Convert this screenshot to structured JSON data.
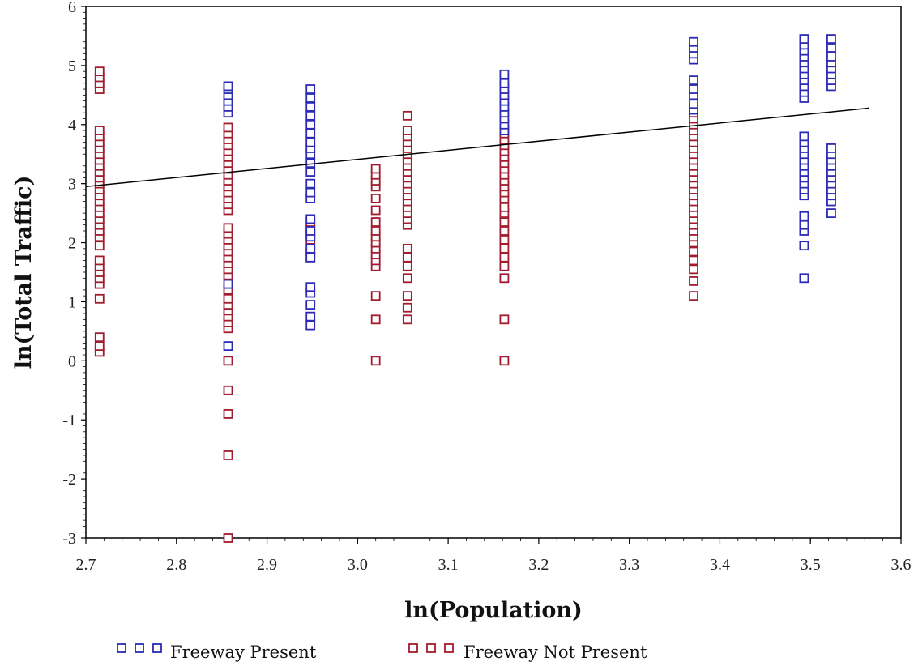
{
  "chart_data": {
    "type": "scatter",
    "title": "",
    "xlabel": "ln(Population)",
    "ylabel": "ln(Total Traffic)",
    "xlim": [
      2.7,
      3.6
    ],
    "ylim": [
      -3,
      6
    ],
    "x_ticks": [
      "2.7",
      "2.8",
      "2.9",
      "3.0",
      "3.1",
      "3.2",
      "3.3",
      "3.4",
      "3.5",
      "3.6"
    ],
    "y_ticks": [
      "-3",
      "-2",
      "-1",
      "0",
      "1",
      "2",
      "3",
      "4",
      "5",
      "6"
    ],
    "grid": false,
    "legend_position": "bottom",
    "colors": {
      "Freeway Present": "#2b2bb5",
      "Freeway Not Present": "#a01c2e",
      "line": "#000000"
    },
    "series": [
      {
        "name": "Freeway Present",
        "points": [
          [
            2.857,
            0.25
          ],
          [
            2.857,
            1.3
          ],
          [
            2.857,
            4.2
          ],
          [
            2.857,
            4.3
          ],
          [
            2.857,
            4.4
          ],
          [
            2.857,
            4.5
          ],
          [
            2.857,
            4.6
          ],
          [
            2.857,
            4.65
          ],
          [
            2.948,
            0.6
          ],
          [
            2.948,
            0.75
          ],
          [
            2.948,
            0.95
          ],
          [
            2.948,
            1.15
          ],
          [
            2.948,
            1.25
          ],
          [
            2.948,
            1.75
          ],
          [
            2.948,
            1.9
          ],
          [
            2.948,
            2.1
          ],
          [
            2.948,
            2.2
          ],
          [
            2.948,
            2.4
          ],
          [
            2.948,
            2.75
          ],
          [
            2.948,
            2.85
          ],
          [
            2.948,
            3.0
          ],
          [
            2.948,
            3.2
          ],
          [
            2.948,
            3.35
          ],
          [
            2.948,
            3.5
          ],
          [
            2.948,
            3.6
          ],
          [
            2.948,
            3.7
          ],
          [
            2.948,
            3.85
          ],
          [
            2.948,
            4.0
          ],
          [
            2.948,
            4.15
          ],
          [
            2.948,
            4.3
          ],
          [
            2.948,
            4.45
          ],
          [
            2.948,
            4.6
          ],
          [
            3.162,
            3.9
          ],
          [
            3.162,
            4.0
          ],
          [
            3.162,
            4.1
          ],
          [
            3.162,
            4.2
          ],
          [
            3.162,
            4.3
          ],
          [
            3.162,
            4.4
          ],
          [
            3.162,
            4.5
          ],
          [
            3.162,
            4.6
          ],
          [
            3.162,
            4.7
          ],
          [
            3.162,
            4.85
          ],
          [
            3.371,
            4.25
          ],
          [
            3.371,
            4.35
          ],
          [
            3.371,
            4.5
          ],
          [
            3.371,
            4.6
          ],
          [
            3.371,
            4.75
          ],
          [
            3.371,
            5.1
          ],
          [
            3.371,
            5.2
          ],
          [
            3.371,
            5.3
          ],
          [
            3.371,
            5.4
          ],
          [
            3.493,
            1.4
          ],
          [
            3.493,
            1.95
          ],
          [
            3.493,
            2.2
          ],
          [
            3.493,
            2.3
          ],
          [
            3.493,
            2.45
          ],
          [
            3.493,
            2.8
          ],
          [
            3.493,
            2.9
          ],
          [
            3.493,
            3.0
          ],
          [
            3.493,
            3.1
          ],
          [
            3.493,
            3.2
          ],
          [
            3.493,
            3.3
          ],
          [
            3.493,
            3.4
          ],
          [
            3.493,
            3.5
          ],
          [
            3.493,
            3.6
          ],
          [
            3.493,
            3.7
          ],
          [
            3.493,
            3.8
          ],
          [
            3.493,
            4.45
          ],
          [
            3.493,
            4.55
          ],
          [
            3.493,
            4.65
          ],
          [
            3.493,
            4.75
          ],
          [
            3.493,
            4.85
          ],
          [
            3.493,
            4.95
          ],
          [
            3.493,
            5.05
          ],
          [
            3.493,
            5.15
          ],
          [
            3.493,
            5.25
          ],
          [
            3.493,
            5.35
          ],
          [
            3.493,
            5.45
          ],
          [
            3.523,
            2.5
          ],
          [
            3.523,
            2.7
          ],
          [
            3.523,
            2.8
          ],
          [
            3.523,
            2.9
          ],
          [
            3.523,
            3.0
          ],
          [
            3.523,
            3.1
          ],
          [
            3.523,
            3.2
          ],
          [
            3.523,
            3.3
          ],
          [
            3.523,
            3.4
          ],
          [
            3.523,
            3.5
          ],
          [
            3.523,
            3.6
          ],
          [
            3.523,
            4.65
          ],
          [
            3.523,
            4.75
          ],
          [
            3.523,
            4.85
          ],
          [
            3.523,
            4.95
          ],
          [
            3.523,
            5.05
          ],
          [
            3.523,
            5.15
          ],
          [
            3.523,
            5.3
          ],
          [
            3.523,
            5.45
          ]
        ]
      },
      {
        "name": "Freeway Not Present",
        "points": [
          [
            2.715,
            0.15
          ],
          [
            2.715,
            0.25
          ],
          [
            2.715,
            0.4
          ],
          [
            2.715,
            1.05
          ],
          [
            2.715,
            1.3
          ],
          [
            2.715,
            1.4
          ],
          [
            2.715,
            1.5
          ],
          [
            2.715,
            1.6
          ],
          [
            2.715,
            1.7
          ],
          [
            2.715,
            1.95
          ],
          [
            2.715,
            2.1
          ],
          [
            2.715,
            2.2
          ],
          [
            2.715,
            2.3
          ],
          [
            2.715,
            2.4
          ],
          [
            2.715,
            2.5
          ],
          [
            2.715,
            2.6
          ],
          [
            2.715,
            2.7
          ],
          [
            2.715,
            2.8
          ],
          [
            2.715,
            2.9
          ],
          [
            2.715,
            3.0
          ],
          [
            2.715,
            3.1
          ],
          [
            2.715,
            3.2
          ],
          [
            2.715,
            3.3
          ],
          [
            2.715,
            3.4
          ],
          [
            2.715,
            3.5
          ],
          [
            2.715,
            3.6
          ],
          [
            2.715,
            3.7
          ],
          [
            2.715,
            3.8
          ],
          [
            2.715,
            3.9
          ],
          [
            2.715,
            4.6
          ],
          [
            2.715,
            4.7
          ],
          [
            2.715,
            4.8
          ],
          [
            2.715,
            4.9
          ],
          [
            2.857,
            -3.0
          ],
          [
            2.857,
            -1.6
          ],
          [
            2.857,
            -0.9
          ],
          [
            2.857,
            -0.5
          ],
          [
            2.857,
            0.0
          ],
          [
            2.857,
            0.55
          ],
          [
            2.857,
            0.65
          ],
          [
            2.857,
            0.75
          ],
          [
            2.857,
            0.85
          ],
          [
            2.857,
            0.95
          ],
          [
            2.857,
            1.05
          ],
          [
            2.857,
            1.2
          ],
          [
            2.857,
            1.45
          ],
          [
            2.857,
            1.55
          ],
          [
            2.857,
            1.65
          ],
          [
            2.857,
            1.75
          ],
          [
            2.857,
            1.85
          ],
          [
            2.857,
            1.95
          ],
          [
            2.857,
            2.05
          ],
          [
            2.857,
            2.15
          ],
          [
            2.857,
            2.25
          ],
          [
            2.857,
            2.55
          ],
          [
            2.857,
            2.65
          ],
          [
            2.857,
            2.75
          ],
          [
            2.857,
            2.85
          ],
          [
            2.857,
            2.95
          ],
          [
            2.857,
            3.05
          ],
          [
            2.857,
            3.15
          ],
          [
            2.857,
            3.25
          ],
          [
            2.857,
            3.35
          ],
          [
            2.857,
            3.45
          ],
          [
            2.857,
            3.55
          ],
          [
            2.857,
            3.65
          ],
          [
            2.857,
            3.75
          ],
          [
            2.857,
            3.85
          ],
          [
            2.857,
            3.95
          ],
          [
            2.948,
            1.75
          ],
          [
            2.948,
            1.85
          ],
          [
            2.948,
            2.05
          ],
          [
            2.948,
            2.15
          ],
          [
            2.948,
            2.25
          ],
          [
            2.948,
            2.35
          ],
          [
            3.02,
            0.0
          ],
          [
            3.02,
            0.7
          ],
          [
            3.02,
            1.1
          ],
          [
            3.02,
            1.6
          ],
          [
            3.02,
            1.7
          ],
          [
            3.02,
            1.8
          ],
          [
            3.02,
            1.9
          ],
          [
            3.02,
            2.0
          ],
          [
            3.02,
            2.1
          ],
          [
            3.02,
            2.2
          ],
          [
            3.02,
            2.35
          ],
          [
            3.02,
            2.55
          ],
          [
            3.02,
            2.75
          ],
          [
            3.02,
            2.95
          ],
          [
            3.02,
            3.05
          ],
          [
            3.02,
            3.15
          ],
          [
            3.02,
            3.25
          ],
          [
            3.055,
            0.7
          ],
          [
            3.055,
            0.9
          ],
          [
            3.055,
            1.1
          ],
          [
            3.055,
            1.4
          ],
          [
            3.055,
            1.6
          ],
          [
            3.055,
            1.75
          ],
          [
            3.055,
            1.9
          ],
          [
            3.055,
            2.3
          ],
          [
            3.055,
            2.4
          ],
          [
            3.055,
            2.5
          ],
          [
            3.055,
            2.6
          ],
          [
            3.055,
            2.7
          ],
          [
            3.055,
            2.8
          ],
          [
            3.055,
            2.9
          ],
          [
            3.055,
            3.0
          ],
          [
            3.055,
            3.1
          ],
          [
            3.055,
            3.2
          ],
          [
            3.055,
            3.3
          ],
          [
            3.055,
            3.4
          ],
          [
            3.055,
            3.5
          ],
          [
            3.055,
            3.6
          ],
          [
            3.055,
            3.7
          ],
          [
            3.055,
            3.8
          ],
          [
            3.055,
            3.9
          ],
          [
            3.055,
            4.15
          ],
          [
            3.162,
            0.0
          ],
          [
            3.162,
            0.7
          ],
          [
            3.162,
            1.4
          ],
          [
            3.162,
            1.6
          ],
          [
            3.162,
            1.75
          ],
          [
            3.162,
            1.9
          ],
          [
            3.162,
            2.05
          ],
          [
            3.162,
            2.2
          ],
          [
            3.162,
            2.35
          ],
          [
            3.162,
            2.5
          ],
          [
            3.162,
            2.6
          ],
          [
            3.162,
            2.75
          ],
          [
            3.162,
            2.85
          ],
          [
            3.162,
            2.95
          ],
          [
            3.162,
            3.05
          ],
          [
            3.162,
            3.15
          ],
          [
            3.162,
            3.25
          ],
          [
            3.162,
            3.35
          ],
          [
            3.162,
            3.45
          ],
          [
            3.162,
            3.55
          ],
          [
            3.162,
            3.65
          ],
          [
            3.162,
            3.75
          ],
          [
            3.162,
            3.85
          ],
          [
            3.371,
            1.1
          ],
          [
            3.371,
            1.35
          ],
          [
            3.371,
            1.55
          ],
          [
            3.371,
            1.7
          ],
          [
            3.371,
            1.85
          ],
          [
            3.371,
            2.0
          ],
          [
            3.371,
            2.1
          ],
          [
            3.371,
            2.2
          ],
          [
            3.371,
            2.3
          ],
          [
            3.371,
            2.4
          ],
          [
            3.371,
            2.5
          ],
          [
            3.371,
            2.6
          ],
          [
            3.371,
            2.7
          ],
          [
            3.371,
            2.8
          ],
          [
            3.371,
            2.9
          ],
          [
            3.371,
            3.0
          ],
          [
            3.371,
            3.1
          ],
          [
            3.371,
            3.2
          ],
          [
            3.371,
            3.3
          ],
          [
            3.371,
            3.4
          ],
          [
            3.371,
            3.5
          ],
          [
            3.371,
            3.6
          ],
          [
            3.371,
            3.7
          ],
          [
            3.371,
            3.8
          ],
          [
            3.371,
            3.9
          ],
          [
            3.371,
            4.0
          ],
          [
            3.371,
            4.1
          ],
          [
            3.371,
            4.2
          ]
        ]
      }
    ],
    "regression_line": {
      "x": [
        2.7,
        3.565
      ],
      "y": [
        2.95,
        4.28
      ]
    }
  }
}
